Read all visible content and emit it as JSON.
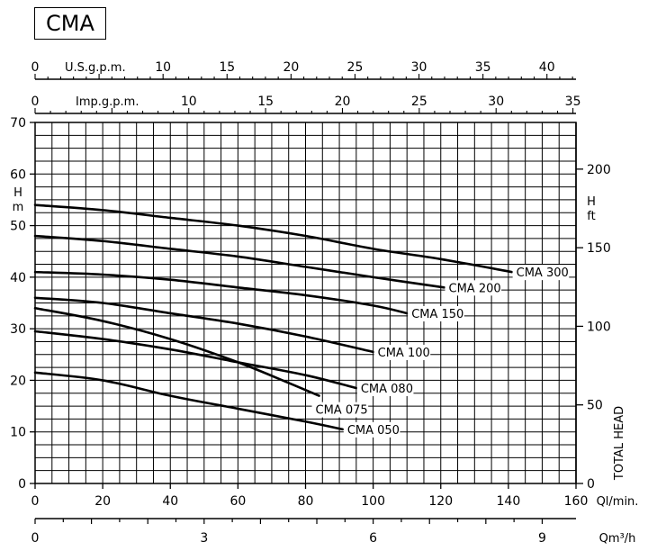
{
  "title": "CMA",
  "chart_data": {
    "type": "line",
    "title": "CMA",
    "x": {
      "label": "Ql/min.",
      "min": 0,
      "max": 160,
      "ticks": [
        0,
        20,
        40,
        60,
        80,
        100,
        120,
        140,
        160
      ]
    },
    "x_m3h": {
      "label": "Qm³/h",
      "min": 0,
      "max": 9.6,
      "ticks": [
        0,
        3,
        6,
        9
      ]
    },
    "x_usgpm": {
      "label": "U.S.g.p.m.",
      "min": 0,
      "max": 42.27,
      "ticks": [
        0,
        10,
        15,
        20,
        25,
        30,
        35,
        40
      ]
    },
    "x_impgpm": {
      "label": "Imp.g.p.m.",
      "min": 0,
      "max": 35.2,
      "ticks": [
        0,
        10,
        15,
        20,
        25,
        30,
        35
      ]
    },
    "y": {
      "label": "H m",
      "label_top": "H",
      "label_unit": "m",
      "min": 0,
      "max": 70,
      "ticks": [
        0,
        10,
        20,
        30,
        40,
        50,
        60,
        70
      ]
    },
    "y_ft": {
      "label_top": "H",
      "label_unit": "ft",
      "side_label": "TOTAL HEAD",
      "min": 0,
      "max": 229.7,
      "ticks": [
        0,
        50,
        100,
        150,
        200
      ]
    },
    "grid": true,
    "series": [
      {
        "name": "CMA 300",
        "points": [
          [
            0,
            54
          ],
          [
            20,
            53
          ],
          [
            40,
            51.5
          ],
          [
            60,
            50
          ],
          [
            80,
            48
          ],
          [
            100,
            45.5
          ],
          [
            120,
            43.5
          ],
          [
            141,
            41
          ]
        ]
      },
      {
        "name": "CMA 200",
        "points": [
          [
            0,
            48
          ],
          [
            20,
            47
          ],
          [
            40,
            45.5
          ],
          [
            60,
            44
          ],
          [
            80,
            42
          ],
          [
            100,
            40
          ],
          [
            121,
            38
          ]
        ]
      },
      {
        "name": "CMA 150",
        "points": [
          [
            0,
            41
          ],
          [
            20,
            40.5
          ],
          [
            40,
            39.5
          ],
          [
            60,
            38
          ],
          [
            80,
            36.5
          ],
          [
            100,
            34.5
          ],
          [
            110,
            33
          ]
        ]
      },
      {
        "name": "CMA 100",
        "points": [
          [
            0,
            36
          ],
          [
            20,
            35
          ],
          [
            40,
            33
          ],
          [
            60,
            31
          ],
          [
            80,
            28.5
          ],
          [
            100,
            25.5
          ]
        ]
      },
      {
        "name": "CMA 080",
        "points": [
          [
            0,
            29.5
          ],
          [
            20,
            28
          ],
          [
            40,
            26
          ],
          [
            60,
            23.5
          ],
          [
            80,
            21
          ],
          [
            95,
            18.5
          ]
        ]
      },
      {
        "name": "CMA 075",
        "points": [
          [
            0,
            34
          ],
          [
            20,
            31.5
          ],
          [
            40,
            28
          ],
          [
            60,
            23.5
          ],
          [
            75,
            19.5
          ],
          [
            84,
            17
          ]
        ]
      },
      {
        "name": "CMA 050",
        "points": [
          [
            0,
            21.5
          ],
          [
            20,
            20
          ],
          [
            40,
            17
          ],
          [
            60,
            14.5
          ],
          [
            80,
            12
          ],
          [
            91,
            10.5
          ]
        ]
      }
    ]
  }
}
